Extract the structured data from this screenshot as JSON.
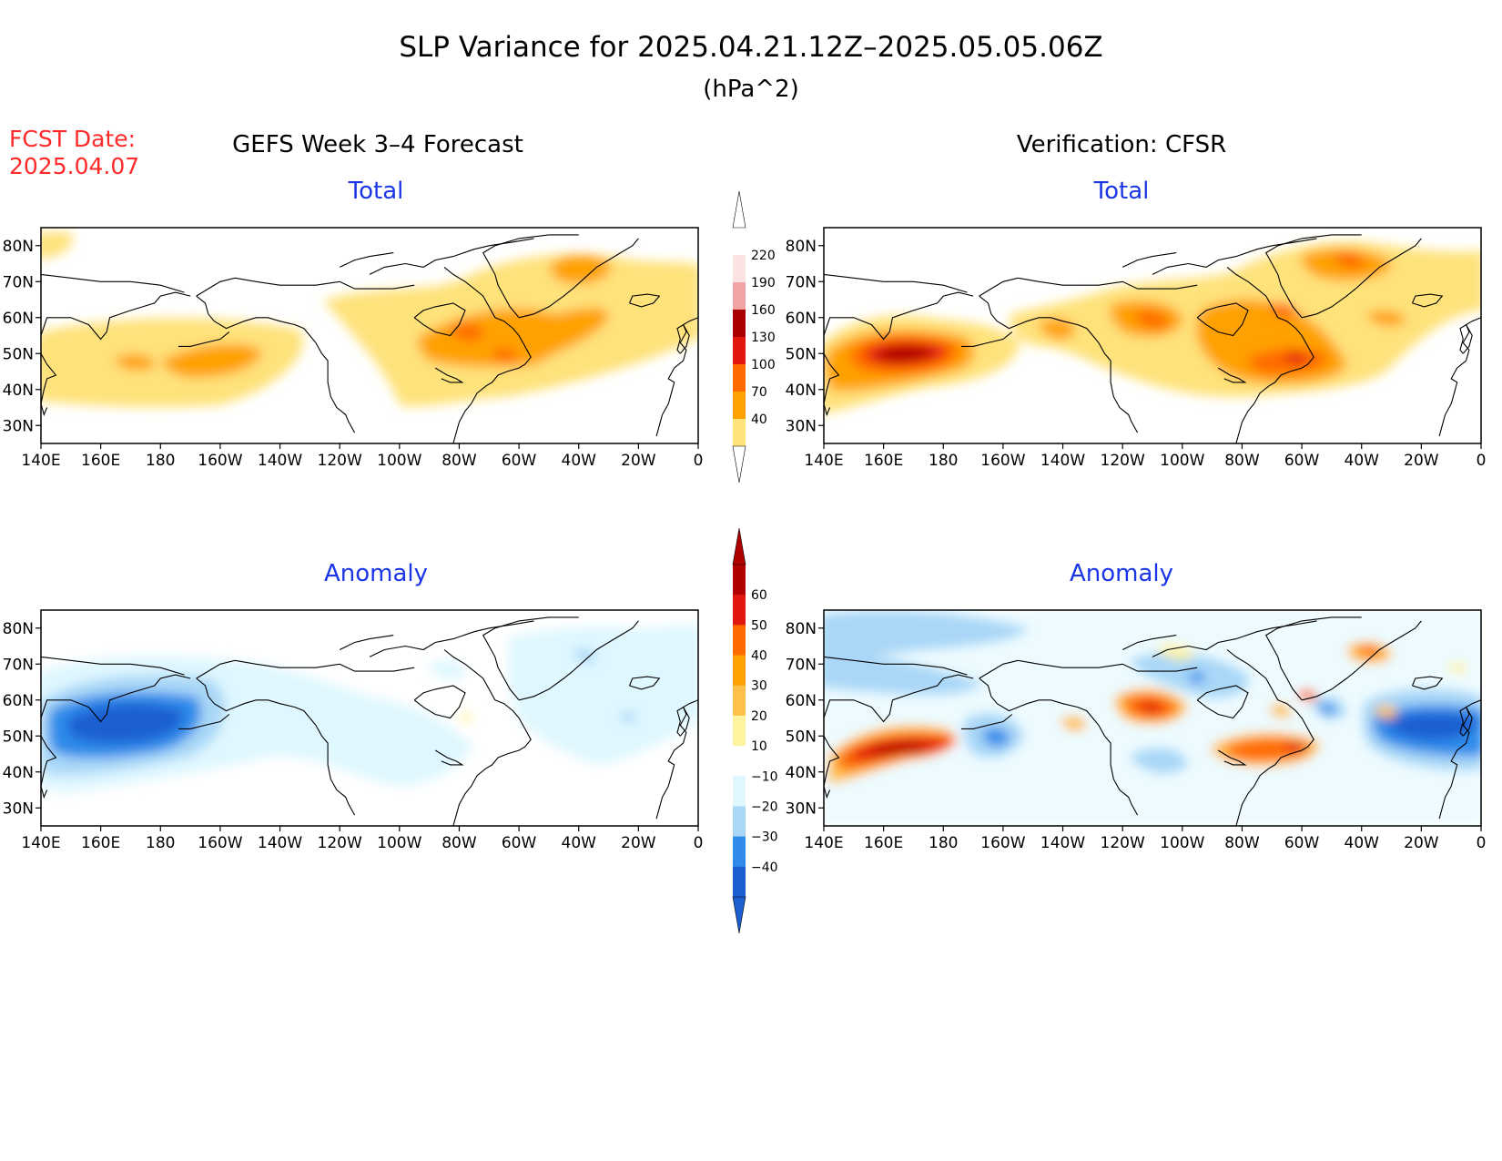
{
  "header": {
    "title": "SLP Variance for 2025.04.21.12Z–2025.05.05.06Z",
    "units": "(hPa^2)"
  },
  "fcst": {
    "line1": "FCST Date:",
    "line2": "2025.04.07"
  },
  "columns": {
    "left": "GEFS Week 3–4 Forecast",
    "right": "Verification: CFSR"
  },
  "panels": [
    {
      "id": "gefs-total",
      "title": "Total"
    },
    {
      "id": "cfsr-total",
      "title": "Total"
    },
    {
      "id": "gefs-anomaly",
      "title": "Anomaly"
    },
    {
      "id": "cfsr-anomaly",
      "title": "Anomaly"
    }
  ],
  "axes": {
    "lon_labels": [
      "140E",
      "160E",
      "180",
      "160W",
      "140W",
      "120W",
      "100W",
      "80W",
      "60W",
      "40W",
      "20W",
      "0"
    ],
    "lat_labels": [
      "80N",
      "70N",
      "60N",
      "50N",
      "40N",
      "30N"
    ]
  },
  "colorbars": {
    "total": {
      "labels": [
        "220",
        "190",
        "160",
        "130",
        "100",
        "70",
        "40"
      ],
      "colors": [
        "#ffffff",
        "#fde2e2",
        "#f2a3a3",
        "#a80000",
        "#e01810",
        "#ff6a00",
        "#ffa100",
        "#ffe27a"
      ]
    },
    "anomaly": {
      "labels": [
        "60",
        "50",
        "40",
        "30",
        "20",
        "10",
        "−10",
        "−20",
        "−30",
        "−40"
      ],
      "colors": [
        "#b00000",
        "#e01810",
        "#ff6a00",
        "#ffa100",
        "#ffc04a",
        "#fff3a0",
        "#ffffff",
        "#dff7ff",
        "#a9d7f7",
        "#2f8bea",
        "#1c5fd1"
      ]
    }
  },
  "colors": {
    "title_blue": "#1a36e6",
    "fcst_red": "#ff2a2a"
  }
}
